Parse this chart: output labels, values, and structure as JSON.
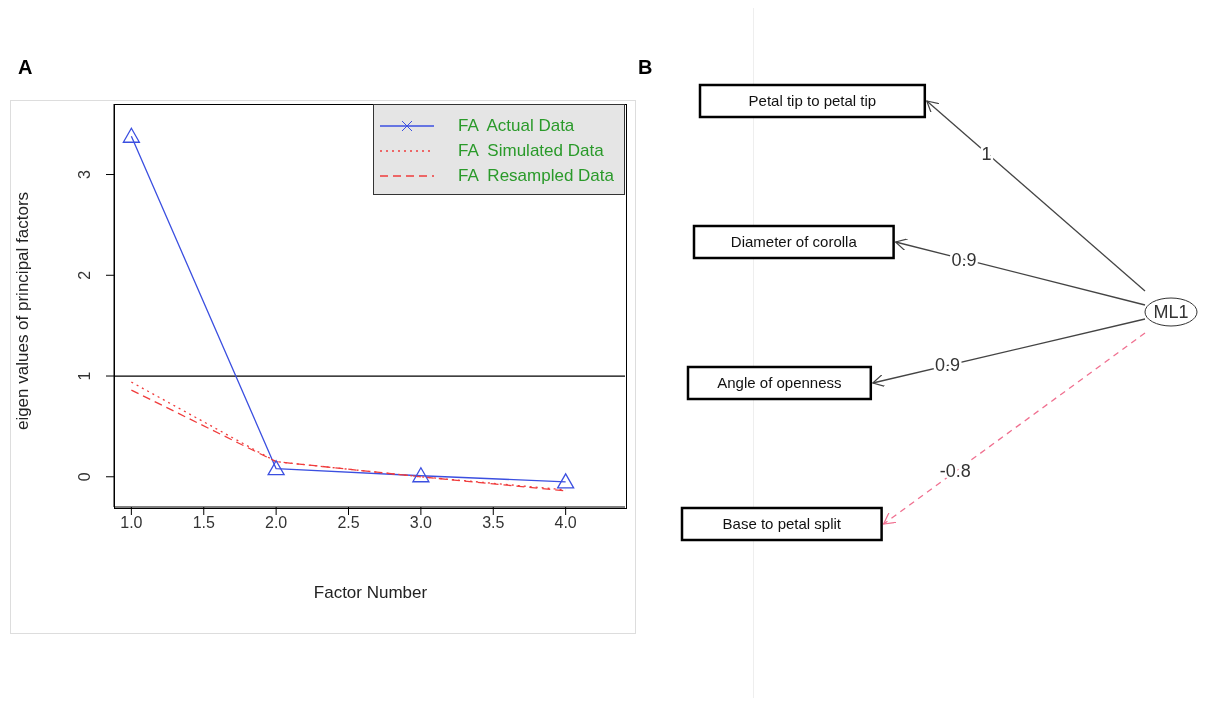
{
  "chart_data": [
    {
      "type": "line",
      "title": "A",
      "xlabel": "Factor Number",
      "ylabel": "eigen values of principal factors",
      "x": [
        1,
        2,
        3,
        4
      ],
      "series": [
        {
          "name": "FA  Actual Data",
          "color": "#3b4fe0",
          "values": [
            3.38,
            0.08,
            0.01,
            -0.05
          ],
          "marker": "triangle",
          "line_style": "solid"
        },
        {
          "name": "FA  Simulated Data",
          "color": "#f03c3c",
          "values": [
            0.94,
            0.15,
            0.0,
            -0.13
          ],
          "marker": "none",
          "line_style": "dotted"
        },
        {
          "name": "FA  Resampled Data",
          "color": "#f03c3c",
          "values": [
            0.86,
            0.15,
            0.0,
            -0.14
          ],
          "marker": "none",
          "line_style": "dashed"
        }
      ],
      "xlim": [
        0.88,
        4.41
      ],
      "ylim": [
        -0.3,
        3.7
      ],
      "xticks": [
        {
          "value": 1,
          "label": "1.0"
        },
        {
          "value": 1.5,
          "label": "1.5"
        },
        {
          "value": 2,
          "label": "2.0"
        },
        {
          "value": 2.5,
          "label": "2.5"
        },
        {
          "value": 3,
          "label": "3.0"
        },
        {
          "value": 3.5,
          "label": "3.5"
        },
        {
          "value": 4,
          "label": "4.0"
        }
      ],
      "yticks": [
        0,
        1,
        2,
        3
      ],
      "ref_lines": [
        {
          "axis": "y",
          "value": 1,
          "color": "#000000"
        }
      ],
      "legend": "top right",
      "grid": false
    },
    {
      "type": "other",
      "title": "B",
      "categories": [
        "Petal tip to petal tip",
        "Diameter of corolla",
        "Angle of openness",
        "Base to petal split"
      ],
      "series": [
        {
          "color": "#444444",
          "values": [
            1,
            0.9,
            0.9,
            null
          ],
          "line_style": "solid"
        },
        {
          "color": "#f07090",
          "values": [
            null,
            null,
            null,
            -0.8
          ],
          "line_style": "dashed"
        }
      ],
      "data_labels": true,
      "annotations": [
        "ML1"
      ]
    }
  ]
}
